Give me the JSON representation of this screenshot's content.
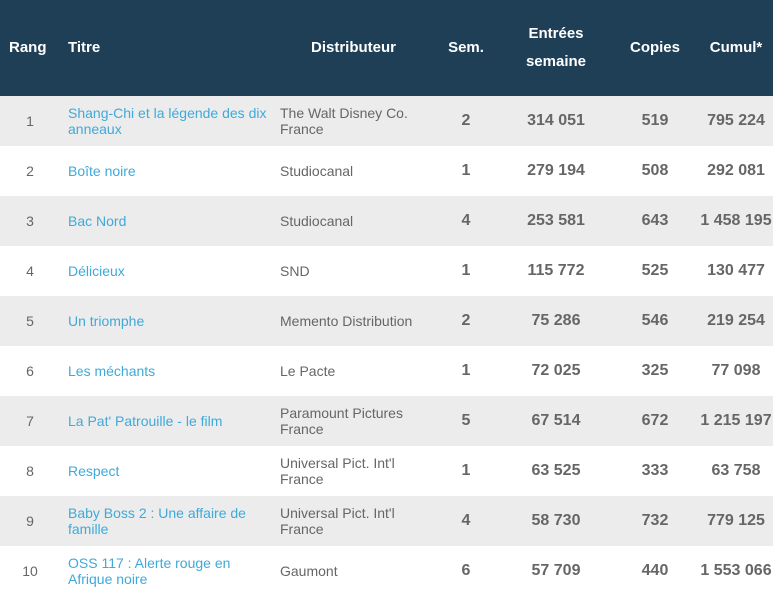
{
  "headers": {
    "rang": "Rang",
    "titre": "Titre",
    "distributeur": "Distributeur",
    "semaine": "Sem.",
    "entrees_line1": "Entrées",
    "entrees_line2": "semaine",
    "copies": "Copies",
    "cumul": "Cumul*"
  },
  "rows": [
    {
      "rang": "1",
      "titre": "Shang-Chi et la légende des dix anneaux",
      "distributeur": "The Walt Disney Co. France",
      "semaine": "2",
      "entrees": "314 051",
      "copies": "519",
      "cumul": "795 224"
    },
    {
      "rang": "2",
      "titre": "Boîte noire",
      "distributeur": "Studiocanal",
      "semaine": "1",
      "entrees": "279 194",
      "copies": "508",
      "cumul": "292 081"
    },
    {
      "rang": "3",
      "titre": "Bac Nord",
      "distributeur": "Studiocanal",
      "semaine": "4",
      "entrees": "253 581",
      "copies": "643",
      "cumul": "1 458 195"
    },
    {
      "rang": "4",
      "titre": "Délicieux",
      "distributeur": "SND",
      "semaine": "1",
      "entrees": "115 772",
      "copies": "525",
      "cumul": "130 477"
    },
    {
      "rang": "5",
      "titre": "Un triomphe",
      "distributeur": "Memento Distribution",
      "semaine": "2",
      "entrees": "75 286",
      "copies": "546",
      "cumul": "219 254"
    },
    {
      "rang": "6",
      "titre": "Les méchants",
      "distributeur": "Le Pacte",
      "semaine": "1",
      "entrees": "72 025",
      "copies": "325",
      "cumul": "77 098"
    },
    {
      "rang": "7",
      "titre": "La Pat' Patrouille - le film",
      "distributeur": "Paramount Pictures France",
      "semaine": "5",
      "entrees": "67 514",
      "copies": "672",
      "cumul": "1 215 197"
    },
    {
      "rang": "8",
      "titre": "Respect",
      "distributeur": "Universal Pict. Int'l France",
      "semaine": "1",
      "entrees": "63 525",
      "copies": "333",
      "cumul": "63 758"
    },
    {
      "rang": "9",
      "titre": "Baby Boss 2 : Une affaire de famille",
      "distributeur": "Universal Pict. Int'l France",
      "semaine": "4",
      "entrees": "58 730",
      "copies": "732",
      "cumul": "779 125"
    },
    {
      "rang": "10",
      "titre": "OSS 117 : Alerte rouge en Afrique noire",
      "distributeur": "Gaumont",
      "semaine": "6",
      "entrees": "57 709",
      "copies": "440",
      "cumul": "1 553 066"
    }
  ],
  "colors": {
    "header_bg": "#1f3f57",
    "link": "#3fa9d9",
    "row_alt": "#ececec",
    "text": "#666666"
  }
}
